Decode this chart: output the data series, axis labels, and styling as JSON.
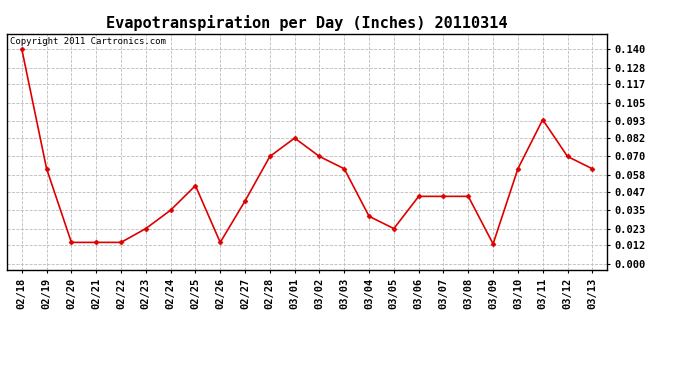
{
  "title": "Evapotranspiration per Day (Inches) 20110314",
  "copyright": "Copyright 2011 Cartronics.com",
  "labels": [
    "02/18",
    "02/19",
    "02/20",
    "02/21",
    "02/22",
    "02/23",
    "02/24",
    "02/25",
    "02/26",
    "02/27",
    "02/28",
    "03/01",
    "03/02",
    "03/03",
    "03/04",
    "03/05",
    "03/06",
    "03/07",
    "03/08",
    "03/09",
    "03/10",
    "03/11",
    "03/12",
    "03/13"
  ],
  "values": [
    0.14,
    0.062,
    0.014,
    0.014,
    0.014,
    0.023,
    0.035,
    0.051,
    0.014,
    0.041,
    0.07,
    0.082,
    0.07,
    0.062,
    0.031,
    0.023,
    0.044,
    0.044,
    0.044,
    0.013,
    0.062,
    0.094,
    0.07,
    0.062
  ],
  "line_color": "#dd0000",
  "marker": "D",
  "marker_size": 2.5,
  "background_color": "#ffffff",
  "grid_color": "#bbbbbb",
  "yticks": [
    0.0,
    0.012,
    0.023,
    0.035,
    0.047,
    0.058,
    0.07,
    0.082,
    0.093,
    0.105,
    0.117,
    0.128,
    0.14
  ],
  "ylim": [
    -0.004,
    0.15
  ],
  "title_fontsize": 11,
  "copyright_fontsize": 6.5,
  "tick_fontsize": 7.5,
  "tick_label_fontweight": "bold"
}
